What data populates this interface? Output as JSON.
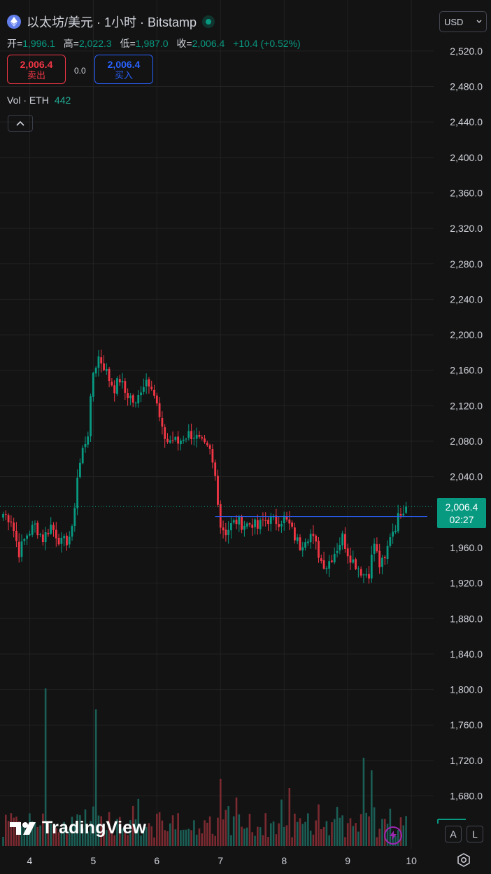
{
  "header": {
    "title": "以太坊/美元 · 1小时 · Bitstamp",
    "ohlc": [
      {
        "label": "开=",
        "value": "1,996.1"
      },
      {
        "label": "高=",
        "value": "2,022.3"
      },
      {
        "label": "低=",
        "value": "1,987.0"
      },
      {
        "label": "收=",
        "value": "2,006.4"
      }
    ],
    "change": "+10.4 (+0.52%)"
  },
  "trade": {
    "sell_price": "2,006.4",
    "sell_label": "卖出",
    "spread": "0.0",
    "buy_price": "2,006.4",
    "buy_label": "买入"
  },
  "volume": {
    "label": "Vol · ETH",
    "value": "442"
  },
  "currency": "USD",
  "price_tag": {
    "price": "2,006.4",
    "countdown": "02:27"
  },
  "brand": "TradingView",
  "scale_buttons": {
    "auto": "A",
    "log": "L"
  },
  "colors": {
    "up": "#089981",
    "down": "#f23645",
    "up_vol": "#1b5e55",
    "down_vol": "#7a2a30",
    "line": "#2962ff",
    "grid": "#222222"
  },
  "chart_data": {
    "type": "candlestick",
    "symbol": "ETH/USD",
    "interval": "1h",
    "y_ticks": [
      2520,
      2480,
      2440,
      2400,
      2360,
      2320,
      2280,
      2240,
      2200,
      2160,
      2120,
      2080,
      2040,
      1960,
      1920,
      1880,
      1840,
      1800,
      1760,
      1720,
      1680
    ],
    "y_tick_labels": [
      "2,520.0",
      "2,480.0",
      "2,440.0",
      "2,400.0",
      "2,360.0",
      "2,320.0",
      "2,280.0",
      "2,240.0",
      "2,200.0",
      "2,160.0",
      "2,120.0",
      "2,080.0",
      "2,040.0",
      "1,960.0",
      "1,920.0",
      "1,880.0",
      "1,840.0",
      "1,800.0",
      "1,760.0",
      "1,720.0",
      "1,680.0"
    ],
    "ylim": [
      1650,
      2540
    ],
    "x_labels": [
      "4",
      "5",
      "6",
      "7",
      "8",
      "9",
      "10"
    ],
    "x_label_bars": [
      10,
      34,
      58,
      82,
      106,
      130,
      154
    ],
    "last_close": 2006.4,
    "horizontal_line": 1995,
    "horizontal_line_bars": [
      80,
      160
    ],
    "price_path": [
      [
        0,
        1998
      ],
      [
        3,
        1992
      ],
      [
        6,
        1955
      ],
      [
        9,
        1975
      ],
      [
        12,
        1985
      ],
      [
        15,
        1970
      ],
      [
        18,
        1985
      ],
      [
        22,
        1965
      ],
      [
        24,
        1968
      ],
      [
        26,
        1978
      ],
      [
        28,
        2040
      ],
      [
        30,
        2070
      ],
      [
        32,
        2090
      ],
      [
        34,
        2158
      ],
      [
        36,
        2175
      ],
      [
        38,
        2165
      ],
      [
        40,
        2150
      ],
      [
        42,
        2140
      ],
      [
        44,
        2150
      ],
      [
        46,
        2135
      ],
      [
        48,
        2130
      ],
      [
        50,
        2120
      ],
      [
        52,
        2140
      ],
      [
        54,
        2150
      ],
      [
        56,
        2145
      ],
      [
        58,
        2120
      ],
      [
        60,
        2090
      ],
      [
        62,
        2080
      ],
      [
        64,
        2082
      ],
      [
        66,
        2078
      ],
      [
        68,
        2085
      ],
      [
        70,
        2088
      ],
      [
        72,
        2087
      ],
      [
        74,
        2080
      ],
      [
        76,
        2073
      ],
      [
        78,
        2068
      ],
      [
        80,
        2040
      ],
      [
        81,
        2015
      ],
      [
        82,
        1985
      ],
      [
        84,
        1978
      ],
      [
        86,
        1985
      ],
      [
        88,
        1990
      ],
      [
        90,
        1987
      ],
      [
        92,
        1986
      ],
      [
        94,
        1988
      ],
      [
        96,
        1982
      ],
      [
        98,
        1990
      ],
      [
        100,
        1992
      ],
      [
        102,
        1990
      ],
      [
        104,
        1990
      ],
      [
        106,
        1993
      ],
      [
        108,
        1985
      ],
      [
        110,
        1972
      ],
      [
        112,
        1962
      ],
      [
        114,
        1972
      ],
      [
        116,
        1975
      ],
      [
        118,
        1962
      ],
      [
        120,
        1945
      ],
      [
        122,
        1940
      ],
      [
        124,
        1950
      ],
      [
        126,
        1960
      ],
      [
        128,
        1972
      ],
      [
        130,
        1955
      ],
      [
        132,
        1945
      ],
      [
        134,
        1938
      ],
      [
        136,
        1930
      ],
      [
        138,
        1932
      ],
      [
        140,
        1965
      ],
      [
        142,
        1940
      ],
      [
        144,
        1945
      ],
      [
        146,
        1975
      ],
      [
        148,
        1985
      ],
      [
        150,
        2002
      ],
      [
        152,
        2006.4
      ]
    ],
    "volume_spikes": [
      [
        16,
        0.75
      ],
      [
        35,
        0.65
      ],
      [
        82,
        0.32
      ],
      [
        136,
        0.42
      ],
      [
        139,
        0.36
      ]
    ]
  }
}
